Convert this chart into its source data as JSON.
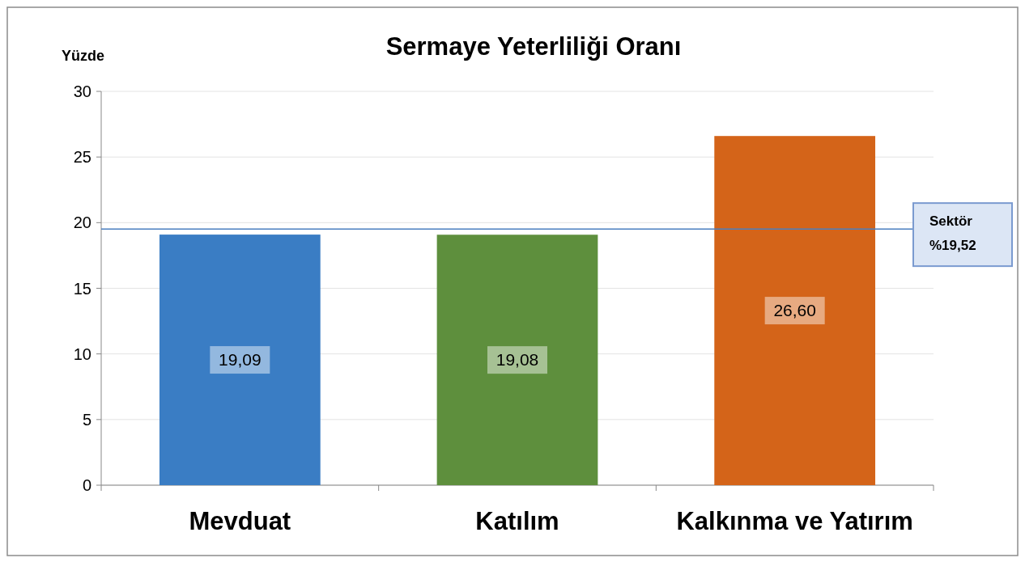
{
  "chart_data": {
    "type": "bar",
    "title": "Sermaye Yeterliliği Oranı",
    "ylabel": "Yüzde",
    "categories": [
      "Mevduat",
      "Katılım",
      "Kalkınma ve Yatırım"
    ],
    "values": [
      19.09,
      19.08,
      26.6
    ],
    "colors": [
      "#3a7dc4",
      "#5e8f3d",
      "#d46419"
    ],
    "value_labels": [
      "19,09",
      "19,08",
      "26,60"
    ],
    "ylim": [
      0,
      30
    ],
    "yticks": [
      0,
      5,
      10,
      15,
      20,
      25,
      30
    ],
    "grid": "y",
    "ref_lines": [
      {
        "axis": "y",
        "value": 19.52,
        "label": "Sektör %19,52",
        "color": "#4a7fc0"
      }
    ]
  }
}
